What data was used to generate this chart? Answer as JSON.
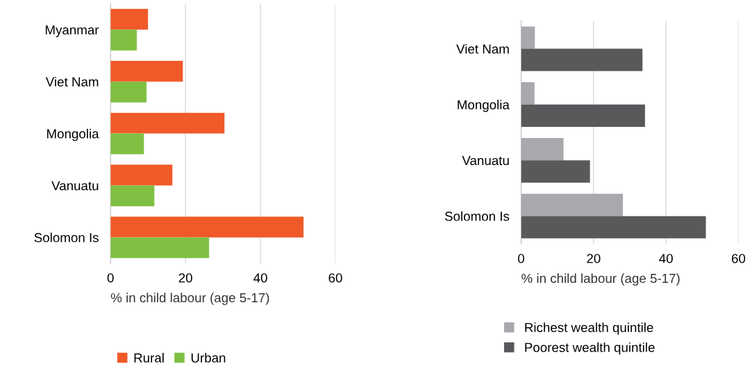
{
  "chart_data": [
    {
      "type": "bar",
      "orientation": "horizontal",
      "categories": [
        "Myanmar",
        "Viet Nam",
        "Mongolia",
        "Vanuatu",
        "Solomon Is"
      ],
      "xlabel": "% in child labour (age 5-17)",
      "xlim": [
        0,
        60
      ],
      "xticks": [
        0,
        20,
        40,
        60
      ],
      "grid": "x",
      "legend": "bottom",
      "series": [
        {
          "name": "Rural",
          "color": "#f05a28",
          "values": [
            10,
            19.3,
            30.4,
            16.5,
            51.5
          ]
        },
        {
          "name": "Urban",
          "color": "#7fc043",
          "values": [
            7,
            9.6,
            8.9,
            11.7,
            26.3
          ]
        }
      ]
    },
    {
      "type": "bar",
      "orientation": "horizontal",
      "categories": [
        "Viet Nam",
        "Mongolia",
        "Vanuatu",
        "Solomon Is"
      ],
      "xlabel": "% in child labour (age 5-17)",
      "xlim": [
        0,
        60
      ],
      "xticks": [
        0,
        20,
        40,
        60
      ],
      "grid": "x",
      "legend": "bottom left",
      "series": [
        {
          "name": "Richest wealth quintile",
          "color": "#a7a9ac",
          "values": [
            3.8,
            3.7,
            11.7,
            28.1
          ]
        },
        {
          "name": "Poorest wealth quintile",
          "color": "#58595b",
          "values": [
            33.5,
            34.2,
            19,
            51
          ]
        }
      ]
    }
  ]
}
